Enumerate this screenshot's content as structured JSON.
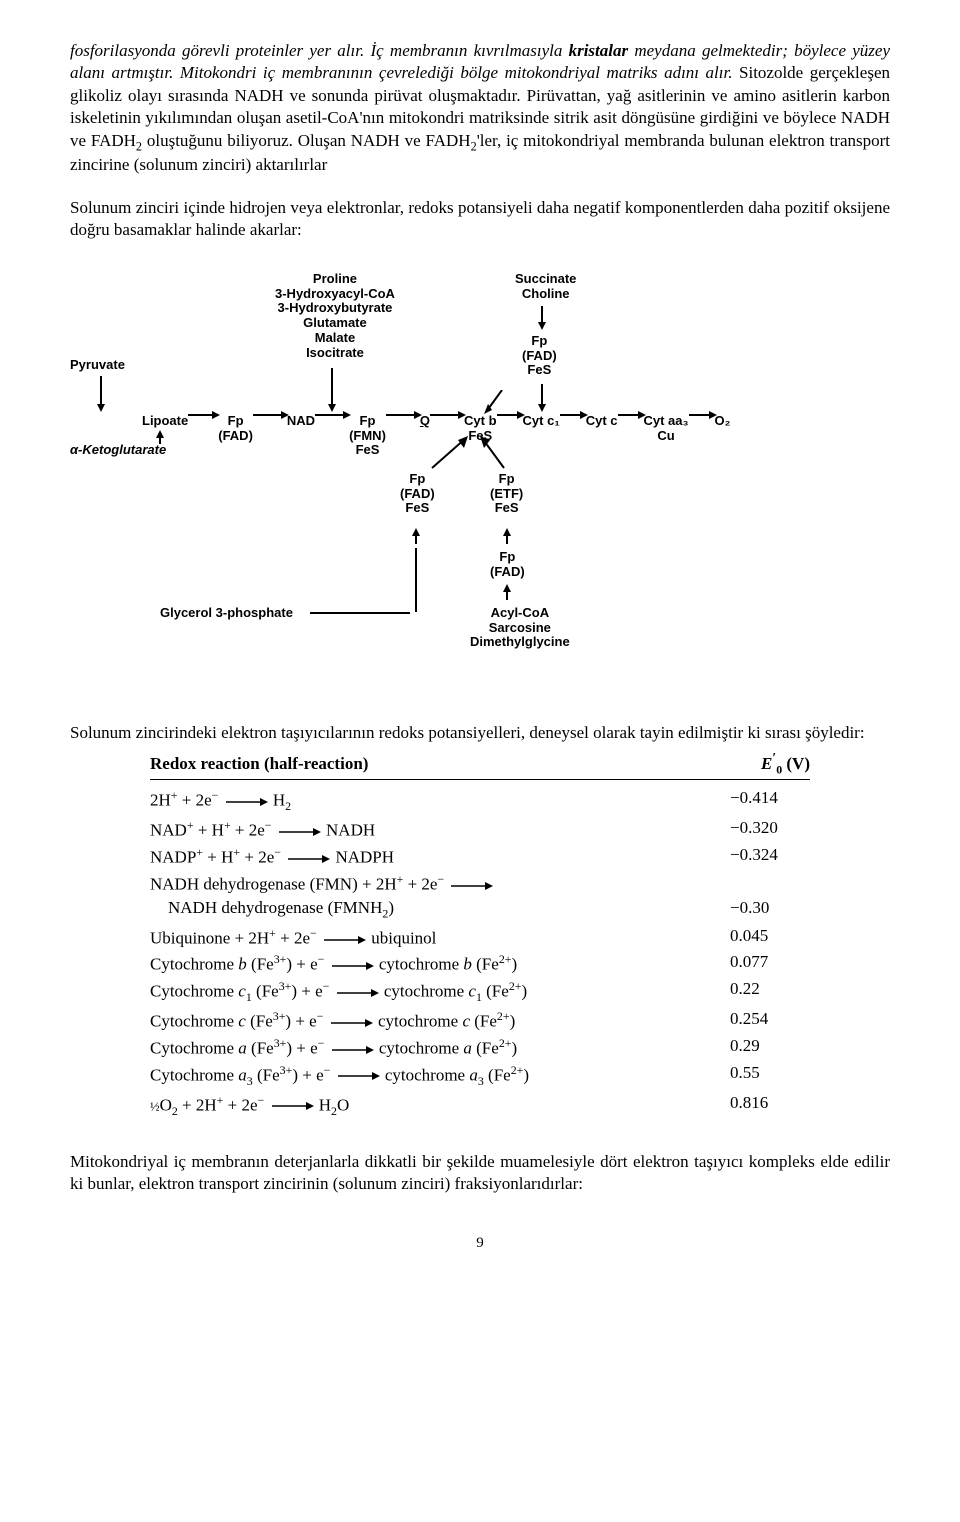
{
  "para1_html": "<span class='italic'>fosforilasyonda görevli proteinler yer alır. İç membranın kıvrılmasıyla <span class='bold'>kristalar</span> meydana gelmektedir; böylece yüzey alanı artmıştır. Mitokondri iç membranının çevrelediği bölge mitokondriyal matriks adını alır.</span> Sitozolde gerçekleşen glikoliz olayı sırasında NADH ve sonunda pirüvat oluşmaktadır. Pirüvattan, yağ asitlerinin ve amino asitlerin karbon iskeletinin yıkılımından oluşan asetil-CoA'nın mitokondri matriksinde sitrik asit döngüsüne girdiğini ve böylece NADH ve FADH<span class='sub'>2</span> oluştuğunu biliyoruz. Oluşan NADH ve FADH<span class='sub'>2</span>'ler, iç mitokondriyal membranda bulunan elektron transport zincirine (solunum zinciri) aktarılırlar",
  "para2": "Solunum zinciri içinde hidrojen veya elektronlar, redoks potansiyeli daha negatif komponentlerden daha pozitif oksijene doğru basamaklar halinde akarlar:",
  "para3": "Solunum zincirindeki elektron taşıyıcılarının redoks potansiyelleri, deneysel olarak tayin edilmiştir ki sırası şöyledir:",
  "para4": "Mitokondriyal iç membranın deterjanlarla dikkatli bir şekilde muamelesiyle dört elektron taşıyıcı kompleks elde edilir ki bunlar, elektron transport zincirinin (solunum zinciri) fraksiyonlarıdırlar:",
  "pageNumber": "9",
  "diagram": {
    "topInputs": {
      "nad_stack": [
        "Proline",
        "3-Hydroxyacyl-CoA",
        "3-Hydroxybutyrate",
        "Glutamate",
        "Malate",
        "Isocitrate"
      ],
      "q_stack": [
        "Succinate",
        "Choline"
      ]
    },
    "pyruvate": "Pyruvate",
    "lipoate": "Lipoate",
    "alpha": "α-Ketoglutarate",
    "fp_fad": {
      "l1": "Fp",
      "l2": "(FAD)"
    },
    "nad": "NAD",
    "fp_fmn_fes": {
      "l1": "Fp",
      "l2": "(FMN)",
      "l3": "FeS"
    },
    "q": "Q",
    "fp_fad_fes_above": {
      "l1": "Fp",
      "l2": "(FAD)",
      "l3": "FeS"
    },
    "cytb_fes": {
      "l1": "Cyt b",
      "l2": "FeS"
    },
    "cytc1": "Cyt c₁",
    "cytc": "Cyt c",
    "cytaa3_cu": {
      "l1": "Cyt aa₃",
      "l2": "Cu"
    },
    "o2": "O₂",
    "below_left": {
      "l1": "Fp",
      "l2": "(FAD)",
      "l3": "FeS"
    },
    "below_right": {
      "l1": "Fp",
      "l2": "(ETF)",
      "l3": "FeS"
    },
    "glycerol": "Glycerol 3-phosphate",
    "fp_fad_bottom": {
      "l1": "Fp",
      "l2": "(FAD)"
    },
    "bottom_stack": [
      "Acyl-CoA",
      "Sarcosine",
      "Dimethylglycine"
    ]
  },
  "redox": {
    "header_left": "Redox reaction (half-reaction)",
    "header_right_html": "<span class='e0'>E</span><span class='prime'>′</span><span class='rsub'>0</span> (V)",
    "rows": [
      {
        "l": "2H<span class='rsup'>+</span> + 2e<span class='rsup'>−</span>",
        "r": "H<span class='rsub'>2</span>",
        "v": "−0.414"
      },
      {
        "l": "NAD<span class='rsup'>+</span> + H<span class='rsup'>+</span> + 2e<span class='rsup'>−</span>",
        "r": "NADH",
        "v": "−0.320"
      },
      {
        "l": "NADP<span class='rsup'>+</span> + H<span class='rsup'>+</span> + 2e<span class='rsup'>−</span>",
        "r": "NADPH",
        "v": "−0.324"
      },
      {
        "l": "NADH dehydrogenase (FMN) + 2H<span class='rsup'>+</span> + 2e<span class='rsup'>−</span>",
        "r": "",
        "v": "",
        "cont": true
      },
      {
        "l": "NADH dehydrogenase (FMNH<span class='rsub'>2</span>)",
        "r": "",
        "v": "−0.30",
        "indent": true
      },
      {
        "l": "Ubiquinone + 2H<span class='rsup'>+</span> + 2e<span class='rsup'>−</span>",
        "r": "ubiquinol",
        "v": "0.045"
      },
      {
        "l": "Cytochrome <span class='italic'>b</span> (Fe<span class='rsup'>3+</span>) + e<span class='rsup'>−</span>",
        "r": "cytochrome <span class='italic'>b</span> (Fe<span class='rsup'>2+</span>)",
        "v": "0.077"
      },
      {
        "l": "Cytochrome <span class='italic'>c</span><span class='rsub'>1</span> (Fe<span class='rsup'>3+</span>) + e<span class='rsup'>−</span>",
        "r": "cytochrome <span class='italic'>c</span><span class='rsub'>1</span> (Fe<span class='rsup'>2+</span>)",
        "v": "0.22"
      },
      {
        "l": "Cytochrome <span class='italic'>c</span> (Fe<span class='rsup'>3+</span>) + e<span class='rsup'>−</span>",
        "r": "cytochrome <span class='italic'>c</span> (Fe<span class='rsup'>2+</span>)",
        "v": "0.254"
      },
      {
        "l": "Cytochrome <span class='italic'>a</span> (Fe<span class='rsup'>3+</span>) + e<span class='rsup'>−</span>",
        "r": "cytochrome <span class='italic'>a</span> (Fe<span class='rsup'>2+</span>)",
        "v": "0.29"
      },
      {
        "l": "Cytochrome <span class='italic'>a</span><span class='rsub'>3</span> (Fe<span class='rsup'>3+</span>) + e<span class='rsup'>−</span>",
        "r": "cytochrome <span class='italic'>a</span><span class='rsub'>3</span> (Fe<span class='rsup'>2+</span>)",
        "v": "0.55"
      },
      {
        "l": "<span style='font-size:0.75em'>½</span>O<span class='rsub'>2</span> + 2H<span class='rsup'>+</span> + 2e<span class='rsup'>−</span>",
        "r": "H<span class='rsub'>2</span>O",
        "v": "0.816"
      }
    ]
  }
}
